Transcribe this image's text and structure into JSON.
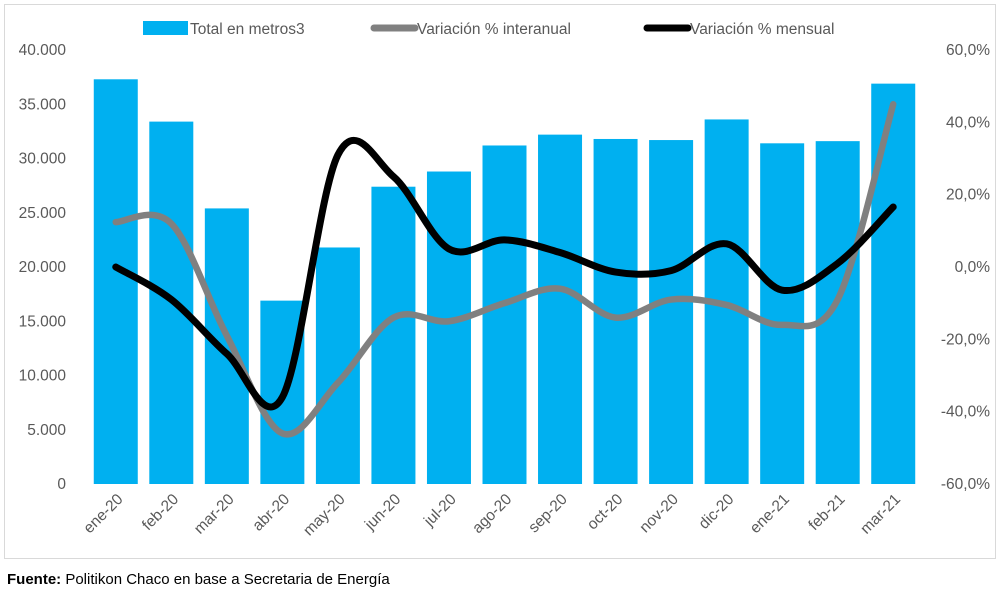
{
  "chart_data": {
    "type": "bar+line",
    "categories": [
      "ene-20",
      "feb-20",
      "mar-20",
      "abr-20",
      "may-20",
      "jun-20",
      "jul-20",
      "ago-20",
      "sep-20",
      "oct-20",
      "nov-20",
      "dic-20",
      "ene-21",
      "feb-21",
      "mar-21"
    ],
    "series": [
      {
        "name": "Total en metros3",
        "type": "bar",
        "axis": "left",
        "color": "#00B0F0",
        "values": [
          37300,
          33400,
          25400,
          16900,
          21800,
          27400,
          28800,
          31200,
          32200,
          31800,
          31700,
          33600,
          31400,
          31600,
          36900
        ]
      },
      {
        "name": "Variación % interanual",
        "type": "line",
        "axis": "right",
        "color": "#808080",
        "values": [
          12.4,
          12,
          -19,
          -46,
          -32,
          -14,
          -15,
          -10,
          -6,
          -14,
          -9,
          -10.5,
          -16,
          -9,
          45
        ]
      },
      {
        "name": "Variación % mensual",
        "type": "line",
        "axis": "right",
        "color": "#000000",
        "values": [
          0,
          -9,
          -24,
          -36,
          31,
          25,
          5,
          7.5,
          4,
          -1.4,
          -1,
          6.4,
          -6.4,
          1,
          16.6
        ]
      }
    ],
    "left_axis": {
      "ylim": [
        0,
        40000
      ],
      "ticks": [
        "0",
        "5.000",
        "10.000",
        "15.000",
        "20.000",
        "25.000",
        "30.000",
        "35.000",
        "40.000"
      ]
    },
    "right_axis": {
      "ylim": [
        -60,
        60
      ],
      "ticks": [
        "-60,0%",
        "-40,0%",
        "-20,0%",
        "0,0%",
        "20,0%",
        "40,0%",
        "60,0%"
      ]
    },
    "grid": false,
    "legend": "top"
  },
  "source": {
    "label": "Fuente:",
    "text": " Politikon Chaco en base a Secretaria de Energía"
  }
}
